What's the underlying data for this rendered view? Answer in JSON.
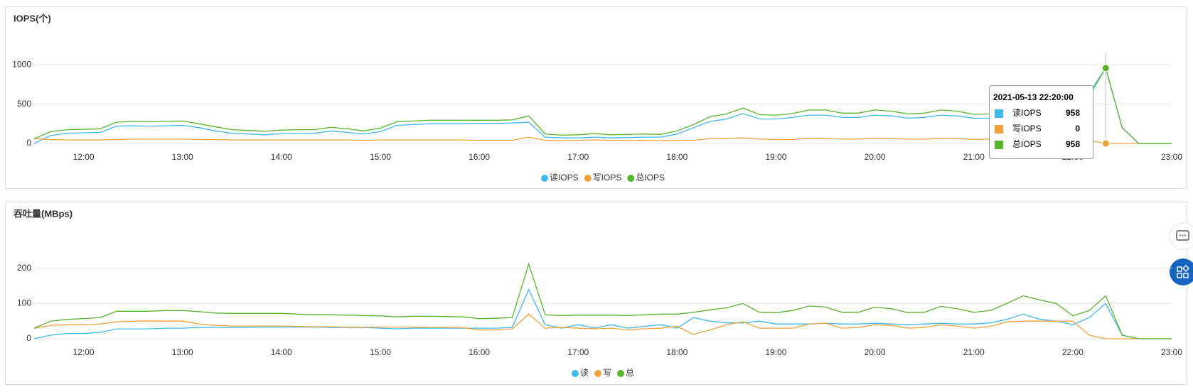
{
  "chart_data": [
    {
      "type": "line",
      "title": "IOPS(个)",
      "x": [
        "11:30",
        "11:40",
        "11:50",
        "12:00",
        "12:10",
        "12:20",
        "12:30",
        "12:40",
        "12:50",
        "13:00",
        "13:10",
        "13:20",
        "13:30",
        "13:40",
        "13:50",
        "14:00",
        "14:10",
        "14:20",
        "14:30",
        "14:40",
        "14:50",
        "15:00",
        "15:10",
        "15:20",
        "15:30",
        "15:40",
        "15:50",
        "16:00",
        "16:10",
        "16:20",
        "16:30",
        "16:40",
        "16:50",
        "17:00",
        "17:10",
        "17:20",
        "17:30",
        "17:40",
        "17:50",
        "18:00",
        "18:10",
        "18:20",
        "18:30",
        "18:40",
        "18:50",
        "19:00",
        "19:10",
        "19:20",
        "19:30",
        "19:40",
        "19:50",
        "20:00",
        "20:10",
        "20:20",
        "20:30",
        "20:40",
        "20:50",
        "21:00",
        "21:10",
        "21:20",
        "21:30",
        "21:40",
        "21:50",
        "22:00",
        "22:10",
        "22:20",
        "22:30",
        "22:40",
        "22:50",
        "23:00"
      ],
      "xlim": [
        "11:30",
        "23:00"
      ],
      "xticks": [
        "12:00",
        "13:00",
        "14:00",
        "15:00",
        "16:00",
        "17:00",
        "18:00",
        "19:00",
        "20:00",
        "21:00",
        "22:00",
        "23:00"
      ],
      "ylim": [
        0,
        1200
      ],
      "yticks": [
        0,
        500,
        1000
      ],
      "grid": true,
      "series": [
        {
          "name": "读IOPS",
          "color": "#3fb8f0",
          "values": [
            0,
            100,
            130,
            135,
            140,
            220,
            225,
            220,
            225,
            230,
            200,
            160,
            130,
            120,
            110,
            125,
            130,
            130,
            160,
            140,
            120,
            150,
            230,
            240,
            250,
            250,
            250,
            255,
            255,
            260,
            270,
            80,
            70,
            70,
            80,
            70,
            75,
            80,
            80,
            120,
            200,
            280,
            310,
            380,
            310,
            310,
            330,
            360,
            360,
            330,
            330,
            360,
            350,
            320,
            330,
            360,
            350,
            320,
            320,
            350,
            360,
            350,
            350,
            360,
            600,
            958,
            200,
            0,
            0,
            0
          ]
        },
        {
          "name": "写IOPS",
          "color": "#f0a33c",
          "values": [
            60,
            50,
            45,
            45,
            45,
            50,
            55,
            55,
            55,
            55,
            50,
            50,
            45,
            45,
            45,
            45,
            45,
            45,
            45,
            45,
            40,
            45,
            45,
            45,
            45,
            45,
            45,
            40,
            40,
            40,
            80,
            40,
            35,
            40,
            45,
            40,
            40,
            40,
            35,
            40,
            40,
            60,
            65,
            70,
            55,
            50,
            50,
            65,
            65,
            55,
            55,
            65,
            60,
            55,
            55,
            65,
            60,
            50,
            55,
            65,
            70,
            65,
            65,
            60,
            40,
            0,
            0,
            0,
            0,
            0
          ]
        },
        {
          "name": "总IOPS",
          "color": "#58b42d",
          "values": [
            60,
            150,
            175,
            180,
            185,
            270,
            280,
            275,
            280,
            285,
            250,
            210,
            175,
            165,
            155,
            170,
            175,
            175,
            205,
            185,
            160,
            195,
            275,
            285,
            295,
            295,
            295,
            295,
            295,
            300,
            350,
            120,
            105,
            110,
            125,
            110,
            115,
            120,
            115,
            160,
            240,
            340,
            375,
            450,
            365,
            360,
            380,
            425,
            425,
            385,
            385,
            425,
            410,
            375,
            385,
            425,
            410,
            370,
            375,
            415,
            430,
            415,
            415,
            420,
            640,
            958,
            200,
            0,
            0,
            0
          ]
        }
      ],
      "tooltip": {
        "x": "22:20",
        "title": "2021-05-13 22:20:00",
        "rows": [
          {
            "name": "读IOPS",
            "value": 958
          },
          {
            "name": "写IOPS",
            "value": 0
          },
          {
            "name": "总IOPS",
            "value": 958
          }
        ]
      }
    },
    {
      "type": "line",
      "title": "吞吐量(MBps)",
      "x": [
        "11:30",
        "11:40",
        "11:50",
        "12:00",
        "12:10",
        "12:20",
        "12:30",
        "12:40",
        "12:50",
        "13:00",
        "13:10",
        "13:20",
        "13:30",
        "13:40",
        "13:50",
        "14:00",
        "14:10",
        "14:20",
        "14:30",
        "14:40",
        "14:50",
        "15:00",
        "15:10",
        "15:20",
        "15:30",
        "15:40",
        "15:50",
        "16:00",
        "16:10",
        "16:20",
        "16:30",
        "16:40",
        "16:50",
        "17:00",
        "17:10",
        "17:20",
        "17:30",
        "17:40",
        "17:50",
        "18:00",
        "18:10",
        "18:20",
        "18:30",
        "18:40",
        "18:50",
        "19:00",
        "19:10",
        "19:20",
        "19:30",
        "19:40",
        "19:50",
        "20:00",
        "20:10",
        "20:20",
        "20:30",
        "20:40",
        "20:50",
        "21:00",
        "21:10",
        "21:20",
        "21:30",
        "21:40",
        "21:50",
        "22:00",
        "22:10",
        "22:20",
        "22:30",
        "22:40",
        "22:50",
        "23:00"
      ],
      "xlim": [
        "11:30",
        "23:00"
      ],
      "xticks": [
        "12:00",
        "13:00",
        "14:00",
        "15:00",
        "16:00",
        "17:00",
        "18:00",
        "19:00",
        "20:00",
        "21:00",
        "22:00",
        "23:00"
      ],
      "ylim": [
        0,
        250
      ],
      "yticks": [
        0,
        100,
        200
      ],
      "grid": true,
      "series": [
        {
          "name": "读",
          "color": "#3fb8f0",
          "values": [
            0,
            10,
            15,
            15,
            18,
            28,
            28,
            28,
            30,
            30,
            32,
            32,
            32,
            32,
            33,
            33,
            33,
            33,
            32,
            32,
            32,
            30,
            28,
            30,
            30,
            30,
            30,
            30,
            30,
            32,
            140,
            40,
            30,
            40,
            30,
            40,
            30,
            35,
            40,
            30,
            60,
            50,
            45,
            45,
            50,
            42,
            42,
            42,
            44,
            42,
            42,
            44,
            42,
            40,
            42,
            44,
            42,
            42,
            45,
            55,
            70,
            55,
            50,
            40,
            60,
            100,
            10,
            0,
            0,
            0
          ]
        },
        {
          "name": "写",
          "color": "#f0a33c",
          "values": [
            30,
            38,
            40,
            40,
            42,
            48,
            50,
            50,
            50,
            50,
            42,
            38,
            36,
            36,
            36,
            36,
            35,
            34,
            34,
            33,
            33,
            33,
            33,
            33,
            32,
            32,
            31,
            25,
            25,
            28,
            70,
            30,
            32,
            30,
            28,
            30,
            25,
            28,
            30,
            35,
            12,
            25,
            40,
            48,
            30,
            30,
            30,
            42,
            44,
            30,
            32,
            40,
            38,
            30,
            32,
            40,
            36,
            30,
            35,
            48,
            50,
            50,
            50,
            50,
            10,
            0,
            0,
            0,
            0,
            0
          ]
        },
        {
          "name": "总",
          "color": "#58b42d",
          "values": [
            30,
            50,
            55,
            57,
            60,
            78,
            78,
            78,
            80,
            80,
            77,
            73,
            72,
            72,
            72,
            72,
            70,
            68,
            68,
            67,
            66,
            65,
            62,
            64,
            64,
            63,
            62,
            57,
            58,
            60,
            212,
            68,
            66,
            67,
            67,
            67,
            66,
            68,
            70,
            70,
            75,
            82,
            88,
            100,
            75,
            74,
            80,
            93,
            90,
            75,
            75,
            90,
            85,
            74,
            75,
            92,
            85,
            75,
            80,
            100,
            122,
            110,
            100,
            65,
            80,
            122,
            10,
            0,
            0,
            0
          ]
        }
      ]
    }
  ]
}
